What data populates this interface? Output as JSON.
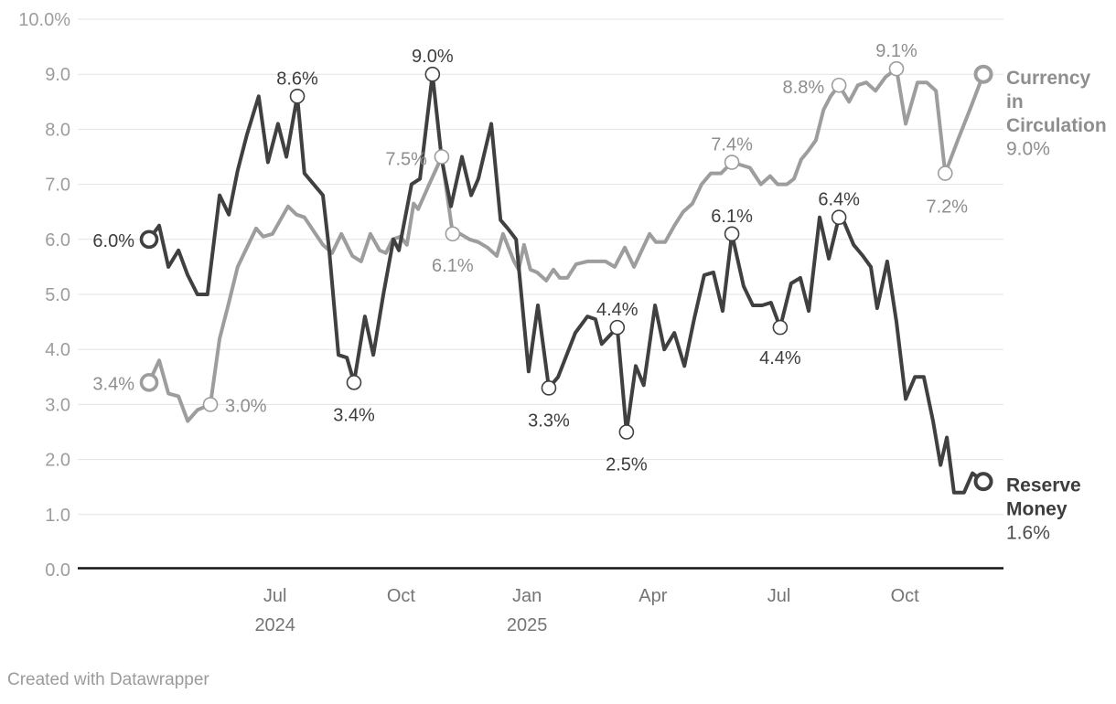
{
  "footer": {
    "text": "Created with Datawrapper"
  },
  "chart_data": {
    "type": "line",
    "title": "",
    "x_unit": "months since series start (spring 2024)",
    "x_axis": {
      "ticks": [
        {
          "t": 3,
          "line1": "Jul",
          "line2": "2024"
        },
        {
          "t": 6,
          "line1": "Oct",
          "line2": ""
        },
        {
          "t": 9,
          "line1": "Jan",
          "line2": "2025"
        },
        {
          "t": 12,
          "line1": "Apr",
          "line2": ""
        },
        {
          "t": 15,
          "line1": "Jul",
          "line2": ""
        },
        {
          "t": 18,
          "line1": "Oct",
          "line2": ""
        }
      ]
    },
    "y_axis": {
      "min": 0,
      "max": 10,
      "step": 1,
      "tick_labels": [
        "10.0%",
        "9.0",
        "8.0",
        "7.0",
        "6.0",
        "5.0",
        "4.0",
        "3.0",
        "2.0",
        "1.0",
        "0.0"
      ],
      "grid": true
    },
    "colors": {
      "grid": "#e3e3e3",
      "baseline": "#151515",
      "y_tick_text": "#9d9d9d",
      "x_tick_text": "#757575"
    },
    "series": [
      {
        "name": "Currency in Circulation",
        "legend_lines": [
          "Currency",
          "in",
          "Circulation"
        ],
        "end_value_label": "9.0%",
        "color": "#9d9d9d",
        "label_color": "#8e8e8e",
        "legend_value_color": "#8e8e8e",
        "points": [
          [
            0,
            3.4
          ],
          [
            0.24,
            3.8
          ],
          [
            0.46,
            3.2
          ],
          [
            0.7,
            3.15
          ],
          [
            0.92,
            2.7
          ],
          [
            1.15,
            2.9
          ],
          [
            1.46,
            3.0
          ],
          [
            1.68,
            4.2
          ],
          [
            1.9,
            4.85
          ],
          [
            2.11,
            5.5
          ],
          [
            2.33,
            5.85
          ],
          [
            2.55,
            6.2
          ],
          [
            2.72,
            6.05
          ],
          [
            2.94,
            6.1
          ],
          [
            3.31,
            6.6
          ],
          [
            3.51,
            6.45
          ],
          [
            3.7,
            6.4
          ],
          [
            3.92,
            6.15
          ],
          [
            4.14,
            5.9
          ],
          [
            4.36,
            5.75
          ],
          [
            4.58,
            6.1
          ],
          [
            4.84,
            5.7
          ],
          [
            5.05,
            5.6
          ],
          [
            5.27,
            6.1
          ],
          [
            5.49,
            5.8
          ],
          [
            5.64,
            5.75
          ],
          [
            5.8,
            6.0
          ],
          [
            5.99,
            6.05
          ],
          [
            6.14,
            5.9
          ],
          [
            6.3,
            6.65
          ],
          [
            6.41,
            6.55
          ],
          [
            6.67,
            7.0
          ],
          [
            6.97,
            7.5
          ],
          [
            7.23,
            6.1
          ],
          [
            7.41,
            6.1
          ],
          [
            7.63,
            6.0
          ],
          [
            7.84,
            5.95
          ],
          [
            8.06,
            5.85
          ],
          [
            8.28,
            5.7
          ],
          [
            8.43,
            6.1
          ],
          [
            8.69,
            5.6
          ],
          [
            8.8,
            5.45
          ],
          [
            8.93,
            5.9
          ],
          [
            9.08,
            5.45
          ],
          [
            9.24,
            5.4
          ],
          [
            9.46,
            5.25
          ],
          [
            9.63,
            5.45
          ],
          [
            9.78,
            5.3
          ],
          [
            9.96,
            5.3
          ],
          [
            10.17,
            5.55
          ],
          [
            10.44,
            5.6
          ],
          [
            10.65,
            5.6
          ],
          [
            10.87,
            5.6
          ],
          [
            11.09,
            5.5
          ],
          [
            11.33,
            5.85
          ],
          [
            11.55,
            5.5
          ],
          [
            11.92,
            6.1
          ],
          [
            12.07,
            5.95
          ],
          [
            12.29,
            5.95
          ],
          [
            12.51,
            6.25
          ],
          [
            12.72,
            6.5
          ],
          [
            12.94,
            6.65
          ],
          [
            13.16,
            7.0
          ],
          [
            13.38,
            7.2
          ],
          [
            13.62,
            7.2
          ],
          [
            13.88,
            7.4
          ],
          [
            14.1,
            7.35
          ],
          [
            14.31,
            7.3
          ],
          [
            14.57,
            7.0
          ],
          [
            14.79,
            7.15
          ],
          [
            14.97,
            7.0
          ],
          [
            15.19,
            7.0
          ],
          [
            15.36,
            7.1
          ],
          [
            15.53,
            7.45
          ],
          [
            15.69,
            7.6
          ],
          [
            15.88,
            7.8
          ],
          [
            16.06,
            8.35
          ],
          [
            16.23,
            8.6
          ],
          [
            16.43,
            8.8
          ],
          [
            16.67,
            8.5
          ],
          [
            16.88,
            8.8
          ],
          [
            17.08,
            8.85
          ],
          [
            17.3,
            8.7
          ],
          [
            17.54,
            8.95
          ],
          [
            17.8,
            9.1
          ],
          [
            18.02,
            8.1
          ],
          [
            18.3,
            8.85
          ],
          [
            18.52,
            8.85
          ],
          [
            18.74,
            8.7
          ],
          [
            18.96,
            7.2
          ],
          [
            19.26,
            7.8
          ],
          [
            19.57,
            8.4
          ],
          [
            19.87,
            9.0
          ]
        ],
        "point_labels": [
          {
            "text": "3.4%",
            "t": 0,
            "v": 3.4,
            "anchor": "end",
            "dx": -16,
            "dy": 8,
            "start": true
          },
          {
            "text": "3.0%",
            "t": 1.46,
            "v": 3.0,
            "anchor": "start",
            "dx": 16,
            "dy": 8
          },
          {
            "text": "7.5%",
            "t": 6.97,
            "v": 7.5,
            "anchor": "end",
            "dx": -16,
            "dy": 9
          },
          {
            "text": "6.1%",
            "t": 7.23,
            "v": 6.1,
            "anchor": "middle",
            "dx": 0,
            "dy": 41
          },
          {
            "text": "7.4%",
            "t": 13.88,
            "v": 7.4,
            "anchor": "middle",
            "dx": 0,
            "dy": -13
          },
          {
            "text": "8.8%",
            "t": 16.43,
            "v": 8.8,
            "anchor": "end",
            "dx": -16,
            "dy": 9
          },
          {
            "text": "9.1%",
            "t": 17.8,
            "v": 9.1,
            "anchor": "middle",
            "dx": 0,
            "dy": -13
          },
          {
            "text": "7.2%",
            "t": 18.96,
            "v": 7.2,
            "anchor": "middle",
            "dx": 2,
            "dy": 43
          }
        ]
      },
      {
        "name": "Reserve Money",
        "legend_lines": [
          "Reserve",
          "Money"
        ],
        "end_value_label": "1.6%",
        "color": "#404040",
        "label_color": "#3d3d3d",
        "legend_value_color": "#4d4d4d",
        "points": [
          [
            0,
            6.0
          ],
          [
            0.24,
            6.25
          ],
          [
            0.46,
            5.5
          ],
          [
            0.7,
            5.8
          ],
          [
            0.92,
            5.35
          ],
          [
            1.15,
            5.0
          ],
          [
            1.39,
            5.0
          ],
          [
            1.68,
            6.8
          ],
          [
            1.9,
            6.45
          ],
          [
            2.11,
            7.25
          ],
          [
            2.33,
            7.9
          ],
          [
            2.61,
            8.6
          ],
          [
            2.83,
            7.4
          ],
          [
            3.07,
            8.1
          ],
          [
            3.27,
            7.5
          ],
          [
            3.53,
            8.6
          ],
          [
            3.7,
            7.2
          ],
          [
            3.92,
            7.0
          ],
          [
            4.14,
            6.8
          ],
          [
            4.29,
            5.8
          ],
          [
            4.51,
            3.9
          ],
          [
            4.71,
            3.85
          ],
          [
            4.88,
            3.4
          ],
          [
            5.14,
            4.6
          ],
          [
            5.34,
            3.9
          ],
          [
            5.58,
            5.0
          ],
          [
            5.82,
            6.0
          ],
          [
            5.95,
            5.8
          ],
          [
            6.25,
            7.0
          ],
          [
            6.45,
            7.1
          ],
          [
            6.75,
            9.0
          ],
          [
            6.97,
            7.45
          ],
          [
            7.19,
            6.6
          ],
          [
            7.45,
            7.5
          ],
          [
            7.67,
            6.8
          ],
          [
            7.84,
            7.1
          ],
          [
            8.15,
            8.1
          ],
          [
            8.37,
            6.35
          ],
          [
            8.54,
            6.2
          ],
          [
            8.74,
            6.0
          ],
          [
            9.04,
            3.6
          ],
          [
            9.26,
            4.8
          ],
          [
            9.52,
            3.3
          ],
          [
            9.74,
            3.5
          ],
          [
            10.15,
            4.3
          ],
          [
            10.44,
            4.6
          ],
          [
            10.63,
            4.55
          ],
          [
            10.78,
            4.1
          ],
          [
            11.15,
            4.4
          ],
          [
            11.37,
            2.5
          ],
          [
            11.59,
            3.7
          ],
          [
            11.78,
            3.35
          ],
          [
            12.05,
            4.8
          ],
          [
            12.27,
            4.0
          ],
          [
            12.51,
            4.3
          ],
          [
            12.75,
            3.7
          ],
          [
            12.98,
            4.55
          ],
          [
            13.22,
            5.35
          ],
          [
            13.44,
            5.4
          ],
          [
            13.66,
            4.7
          ],
          [
            13.88,
            6.1
          ],
          [
            14.16,
            5.15
          ],
          [
            14.38,
            4.8
          ],
          [
            14.6,
            4.8
          ],
          [
            14.81,
            4.85
          ],
          [
            15.03,
            4.4
          ],
          [
            15.29,
            5.2
          ],
          [
            15.51,
            5.3
          ],
          [
            15.71,
            4.7
          ],
          [
            15.97,
            6.4
          ],
          [
            16.19,
            5.65
          ],
          [
            16.43,
            6.4
          ],
          [
            16.56,
            6.3
          ],
          [
            16.78,
            5.9
          ],
          [
            17.0,
            5.7
          ],
          [
            17.19,
            5.5
          ],
          [
            17.34,
            4.75
          ],
          [
            17.58,
            5.6
          ],
          [
            17.8,
            4.5
          ],
          [
            18.02,
            3.1
          ],
          [
            18.24,
            3.5
          ],
          [
            18.45,
            3.5
          ],
          [
            18.67,
            2.7
          ],
          [
            18.85,
            1.9
          ],
          [
            19.0,
            2.4
          ],
          [
            19.17,
            1.4
          ],
          [
            19.41,
            1.4
          ],
          [
            19.61,
            1.75
          ],
          [
            19.87,
            1.6
          ]
        ],
        "point_labels": [
          {
            "text": "6.0%",
            "t": 0,
            "v": 6.0,
            "anchor": "end",
            "dx": -16,
            "dy": 8,
            "start": true
          },
          {
            "text": "8.6%",
            "t": 3.53,
            "v": 8.6,
            "anchor": "middle",
            "dx": 0,
            "dy": -13
          },
          {
            "text": "3.4%",
            "t": 4.88,
            "v": 3.4,
            "anchor": "middle",
            "dx": 0,
            "dy": 42
          },
          {
            "text": "9.0%",
            "t": 6.75,
            "v": 9.0,
            "anchor": "middle",
            "dx": 0,
            "dy": -13
          },
          {
            "text": "3.3%",
            "t": 9.52,
            "v": 3.3,
            "anchor": "middle",
            "dx": 0,
            "dy": 42
          },
          {
            "text": "4.4%",
            "t": 11.15,
            "v": 4.4,
            "anchor": "middle",
            "dx": 0,
            "dy": -13
          },
          {
            "text": "2.5%",
            "t": 11.37,
            "v": 2.5,
            "anchor": "middle",
            "dx": 0,
            "dy": 42
          },
          {
            "text": "6.1%",
            "t": 13.88,
            "v": 6.1,
            "anchor": "middle",
            "dx": 0,
            "dy": -13
          },
          {
            "text": "4.4%",
            "t": 15.03,
            "v": 4.4,
            "anchor": "middle",
            "dx": 0,
            "dy": 40
          },
          {
            "text": "6.4%",
            "t": 16.43,
            "v": 6.4,
            "anchor": "middle",
            "dx": 0,
            "dy": -13
          }
        ]
      }
    ]
  }
}
